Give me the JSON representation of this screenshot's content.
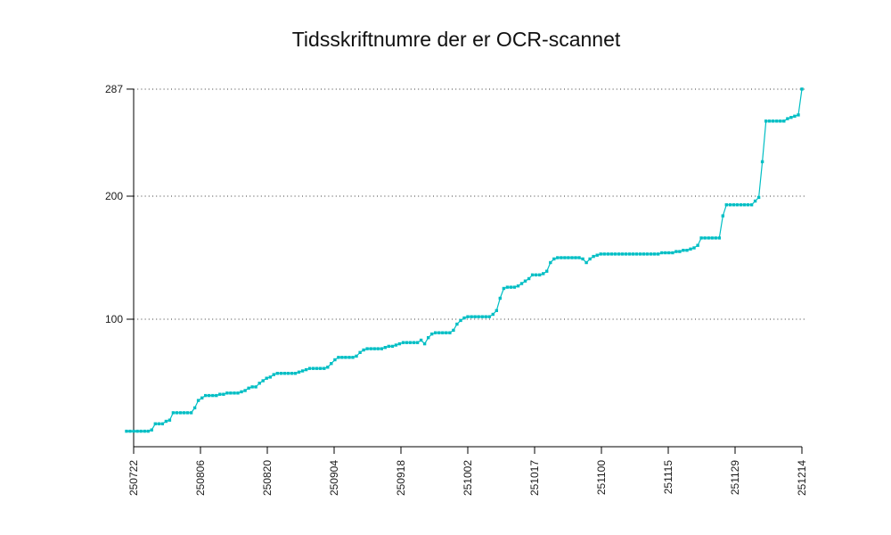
{
  "chart_data": {
    "type": "line",
    "title": "Tidsskriftnumre der er OCR-scannet",
    "xlabel": "",
    "ylabel": "",
    "x_tick_labels": [
      "250722",
      "250806",
      "250820",
      "250904",
      "250918",
      "251002",
      "251017",
      "251100",
      "251115",
      "251129",
      "251214"
    ],
    "y_ticks": [
      {
        "value": 287,
        "label": "287"
      },
      {
        "value": 200,
        "label": "200"
      },
      {
        "value": 100,
        "label": "100"
      }
    ],
    "ylim": [
      0,
      287
    ],
    "grid": "horizontal dotted lines at each y tick",
    "legend_position": "none",
    "marker": "square",
    "colors": {
      "line": "#00BEC4",
      "axis": "#000000",
      "gridline": "#3a3a3a",
      "title_text": "#111111",
      "tick_text": "#1a1a1a",
      "background": "#ffffff"
    },
    "series": [
      {
        "values": [
          9,
          9,
          9,
          9,
          9,
          9,
          9,
          10,
          15,
          15,
          15,
          17,
          18,
          24,
          24,
          24,
          24,
          24,
          24,
          28,
          34,
          36,
          38,
          38,
          38,
          38,
          39,
          39,
          40,
          40,
          40,
          40,
          41,
          42,
          44,
          45,
          45,
          48,
          50,
          52,
          53,
          55,
          56,
          56,
          56,
          56,
          56,
          56,
          57,
          58,
          59,
          60,
          60,
          60,
          60,
          60,
          61,
          64,
          67,
          69,
          69,
          69,
          69,
          69,
          70,
          73,
          75,
          76,
          76,
          76,
          76,
          76,
          77,
          78,
          78,
          79,
          80,
          81,
          81,
          81,
          81,
          81,
          83,
          80,
          85,
          88,
          89,
          89,
          89,
          89,
          89,
          91,
          96,
          99,
          101,
          102,
          102,
          102,
          102,
          102,
          102,
          102,
          104,
          107,
          117,
          125,
          126,
          126,
          126,
          127,
          129,
          131,
          133,
          136,
          136,
          136,
          137,
          139,
          146,
          149,
          150,
          150,
          150,
          150,
          150,
          150,
          150,
          149,
          146,
          149,
          151,
          152,
          153,
          153,
          153,
          153,
          153,
          153,
          153,
          153,
          153,
          153,
          153,
          153,
          153,
          153,
          153,
          153,
          153,
          154,
          154,
          154,
          154,
          155,
          155,
          156,
          156,
          157,
          158,
          160,
          166,
          166,
          166,
          166,
          166,
          166,
          184,
          193,
          193,
          193,
          193,
          193,
          193,
          193,
          193,
          196,
          199,
          228,
          261,
          261,
          261,
          261,
          261,
          261,
          263,
          264,
          265,
          266,
          287
        ]
      }
    ]
  }
}
